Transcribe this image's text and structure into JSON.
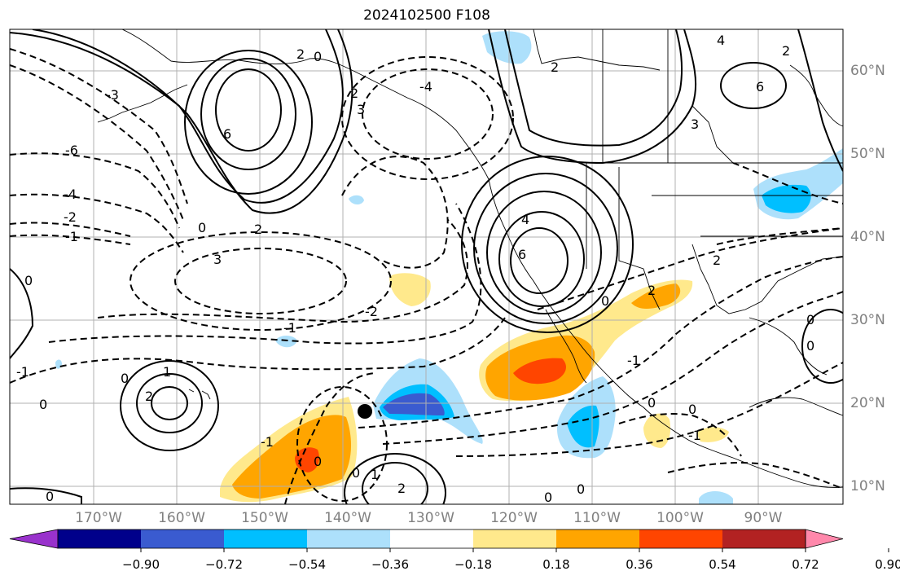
{
  "title": "2024102500 F108",
  "lat_labels": [
    {
      "lat": 60,
      "text": "60°N"
    },
    {
      "lat": 50,
      "text": "50°N"
    },
    {
      "lat": 40,
      "text": "40°N"
    },
    {
      "lat": 30,
      "text": "30°N"
    },
    {
      "lat": 20,
      "text": "20°N"
    },
    {
      "lat": 10,
      "text": "10°N"
    }
  ],
  "lon_labels": [
    {
      "lon": -170,
      "text": "170°W"
    },
    {
      "lon": -160,
      "text": "160°W"
    },
    {
      "lon": -150,
      "text": "150°W"
    },
    {
      "lon": -140,
      "text": "140°W"
    },
    {
      "lon": -130,
      "text": "130°W"
    },
    {
      "lon": -120,
      "text": "120°W"
    },
    {
      "lon": -110,
      "text": "110°W"
    },
    {
      "lon": -100,
      "text": "100°W"
    },
    {
      "lon": -90,
      "text": "90°W"
    }
  ],
  "colorbar": {
    "colors": [
      "#9932cc",
      "#00008b",
      "#3a5bd0",
      "#00bfff",
      "#ade0fb",
      "#ffffff",
      "#ffe98c",
      "#ffa500",
      "#ff4500",
      "#b22222",
      "#ff88ab"
    ],
    "tick_labels": [
      "−0.90",
      "−0.72",
      "−0.54",
      "−0.36",
      "−0.18",
      "0.18",
      "0.36",
      "0.54",
      "0.72",
      "0.90"
    ]
  },
  "contour_labels": [
    "0",
    "1",
    "2",
    "3",
    "4",
    "6",
    "-1",
    "-2",
    "-3",
    "-4",
    "-6"
  ],
  "storm_marker": {
    "name": "storm-center-dot"
  },
  "colors": {
    "positive_fill": "#ffa500",
    "negative_fill": "#00bfff",
    "contour_line": "#000000",
    "grid": "#b0b0b0",
    "axis_text": "#808080"
  }
}
